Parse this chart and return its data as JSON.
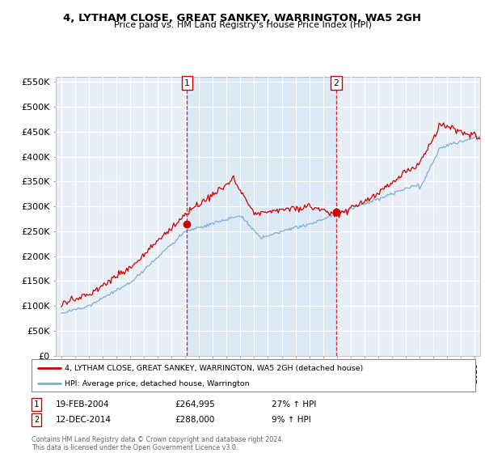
{
  "title": "4, LYTHAM CLOSE, GREAT SANKEY, WARRINGTON, WA5 2GH",
  "subtitle": "Price paid vs. HM Land Registry's House Price Index (HPI)",
  "ylim": [
    0,
    560000
  ],
  "yticks": [
    0,
    50000,
    100000,
    150000,
    200000,
    250000,
    300000,
    350000,
    400000,
    450000,
    500000,
    550000
  ],
  "ytick_labels": [
    "£0",
    "£50K",
    "£100K",
    "£150K",
    "£200K",
    "£250K",
    "£300K",
    "£350K",
    "£400K",
    "£450K",
    "£500K",
    "£550K"
  ],
  "sale1_x": 2004.13,
  "sale1_y": 264995,
  "sale2_x": 2014.95,
  "sale2_y": 288000,
  "red_color": "#cc0000",
  "blue_color": "#7bafd4",
  "shade_color": "#dce9f5",
  "bg_color": "#e8eef5",
  "legend_label_red": "4, LYTHAM CLOSE, GREAT SANKEY, WARRINGTON, WA5 2GH (detached house)",
  "legend_label_blue": "HPI: Average price, detached house, Warrington",
  "footer": "Contains HM Land Registry data © Crown copyright and database right 2024.\nThis data is licensed under the Open Government Licence v3.0.",
  "annotation1_date_str": "19-FEB-2004",
  "annotation1_price_str": "£264,995",
  "sale1_pct": "27% ↑ HPI",
  "annotation2_date_str": "12-DEC-2014",
  "annotation2_price_str": "£288,000",
  "sale2_pct": "9% ↑ HPI",
  "xlim_left": 1994.6,
  "xlim_right": 2025.4
}
